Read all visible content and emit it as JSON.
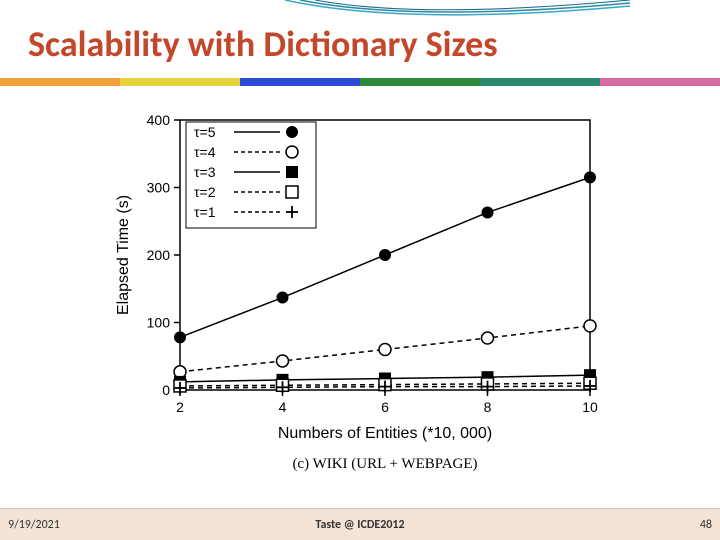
{
  "slide": {
    "title": "Scalability with Dictionary Sizes",
    "title_color": "#c3472a",
    "title_fontsize": 36
  },
  "decoration": {
    "curve_colors": [
      "#3aa7c4",
      "#2e8aa8",
      "#1f6d8c"
    ],
    "bar_colors": [
      "#f2a23a",
      "#e6d23a",
      "#2a4bd6",
      "#2e8a3a",
      "#2a8a6d",
      "#d66aa2"
    ]
  },
  "chart": {
    "type": "line",
    "caption": "(c) WIKI (URL + WEBPAGE)",
    "caption_fontsize": 15,
    "xlabel": "Numbers of Entities (*10, 000)",
    "ylabel": "Elapsed Time (s)",
    "label_fontsize": 16,
    "tick_fontsize": 14,
    "background_color": "#ffffff",
    "axis_color": "#000000",
    "xlim": [
      2,
      10
    ],
    "ylim": [
      0,
      400
    ],
    "xticks": [
      2,
      4,
      6,
      8,
      10
    ],
    "yticks": [
      0,
      100,
      200,
      300,
      400
    ],
    "legend": {
      "position": "top-left-inside",
      "fontsize": 14,
      "entries": [
        {
          "label": "τ=5",
          "marker": "filled-circle",
          "line": "solid"
        },
        {
          "label": "τ=4",
          "marker": "open-circle",
          "line": "dashed"
        },
        {
          "label": "τ=3",
          "marker": "filled-square",
          "line": "solid"
        },
        {
          "label": "τ=2",
          "marker": "open-square",
          "line": "dashed"
        },
        {
          "label": "τ=1",
          "marker": "plus",
          "line": "dashed"
        }
      ]
    },
    "series": [
      {
        "name": "τ=5",
        "x": [
          2,
          4,
          6,
          8,
          10
        ],
        "y": [
          78,
          137,
          200,
          263,
          315
        ],
        "marker": "filled-circle",
        "line": "solid",
        "color": "#000000"
      },
      {
        "name": "τ=4",
        "x": [
          2,
          4,
          6,
          8,
          10
        ],
        "y": [
          27,
          43,
          60,
          77,
          95
        ],
        "marker": "open-circle",
        "line": "dashed",
        "color": "#000000"
      },
      {
        "name": "τ=3",
        "x": [
          2,
          4,
          6,
          8,
          10
        ],
        "y": [
          12,
          15,
          17,
          19,
          22
        ],
        "marker": "filled-square",
        "line": "solid",
        "color": "#000000"
      },
      {
        "name": "τ=2",
        "x": [
          2,
          4,
          6,
          8,
          10
        ],
        "y": [
          6,
          7,
          8,
          9,
          10
        ],
        "marker": "open-square",
        "line": "dashed",
        "color": "#000000"
      },
      {
        "name": "τ=1",
        "x": [
          2,
          4,
          6,
          8,
          10
        ],
        "y": [
          3,
          4,
          5,
          5,
          6
        ],
        "marker": "plus",
        "line": "dashed",
        "color": "#000000"
      }
    ],
    "line_width": 1.5,
    "marker_size": 6
  },
  "footer": {
    "date": "9/19/2021",
    "center": "Taste @ ICDE2012",
    "page": "48",
    "background": "#f5e4d6",
    "fontsize": 12
  }
}
